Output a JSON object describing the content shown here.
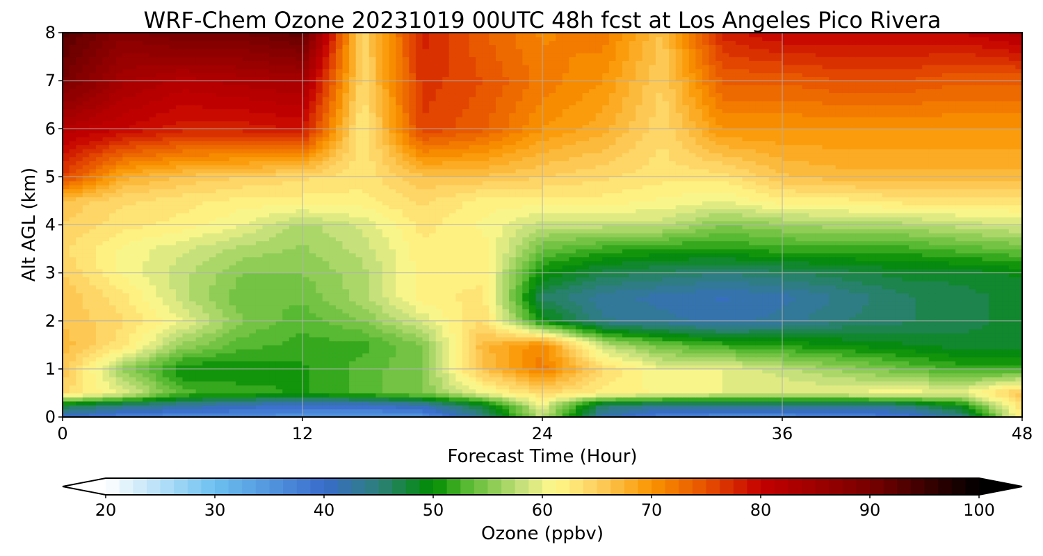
{
  "chart_data": {
    "type": "heatmap",
    "title": "WRF-Chem Ozone  20231019 00UTC 48h fcst at Los Angeles Pico Rivera",
    "xlabel": "Forecast Time (Hour)",
    "ylabel": "Alt AGL (km)",
    "xlim": [
      0,
      48
    ],
    "ylim": [
      0,
      8
    ],
    "x_ticks": [
      0,
      12,
      24,
      36,
      48
    ],
    "x_tick_labels": [
      "0",
      "12",
      "24",
      "36",
      "48"
    ],
    "y_ticks": [
      0,
      1,
      2,
      3,
      4,
      5,
      6,
      7,
      8
    ],
    "y_tick_labels": [
      "0",
      "1",
      "2",
      "3",
      "4",
      "5",
      "6",
      "7",
      "8"
    ],
    "grid": true,
    "x_hours": [
      0,
      3,
      6,
      9,
      12,
      15,
      18,
      21,
      24,
      27,
      30,
      33,
      36,
      39,
      42,
      45,
      48
    ],
    "y_km": [
      0,
      0.25,
      0.5,
      1,
      1.5,
      2,
      2.5,
      3,
      3.5,
      4,
      4.5,
      5,
      6,
      7,
      8
    ],
    "z_ppbv": [
      [
        40,
        37,
        36,
        36,
        35,
        34,
        35,
        44,
        58,
        42,
        37,
        36,
        36,
        37,
        38,
        44,
        62
      ],
      [
        48,
        45,
        43,
        41,
        40,
        40,
        42,
        48,
        60,
        46,
        44,
        44,
        44,
        44,
        45,
        50,
        64
      ],
      [
        64,
        60,
        53,
        52,
        51,
        53,
        55,
        60,
        64,
        62,
        61,
        60,
        60,
        60,
        61,
        60,
        66
      ],
      [
        66,
        56,
        50,
        50,
        51,
        53,
        55,
        66,
        72,
        64,
        60,
        60,
        58,
        56,
        54,
        52,
        52
      ],
      [
        67,
        63,
        56,
        53,
        52,
        52,
        55,
        67,
        71,
        58,
        54,
        52,
        51,
        50,
        49,
        48,
        48
      ],
      [
        66,
        64,
        60,
        55,
        53,
        55,
        59,
        64,
        50,
        44,
        43,
        42,
        43,
        45,
        46,
        47,
        48
      ],
      [
        66,
        63,
        58,
        54,
        54,
        57,
        62,
        63,
        46,
        43,
        42,
        41,
        42,
        44,
        46,
        47,
        48
      ],
      [
        65,
        61,
        58,
        55,
        55,
        57,
        62,
        62,
        50,
        47,
        46,
        45,
        46,
        47,
        48,
        48,
        49
      ],
      [
        64,
        61,
        59,
        57,
        56,
        58,
        62,
        62,
        54,
        52,
        51,
        51,
        52,
        52,
        52,
        53,
        54
      ],
      [
        65,
        63,
        62,
        60,
        57,
        59,
        63,
        61,
        58,
        58,
        58,
        55,
        56,
        57,
        57,
        58,
        59
      ],
      [
        66,
        64,
        63,
        62,
        62,
        62,
        64,
        62,
        62,
        62,
        61,
        60,
        62,
        62,
        63,
        63,
        63
      ],
      [
        76,
        68,
        66,
        65,
        64,
        63,
        66,
        66,
        65,
        64,
        63,
        63,
        66,
        67,
        67,
        67,
        67
      ],
      [
        82,
        80,
        78,
        78,
        79,
        62,
        76,
        74,
        70,
        68,
        64,
        70,
        70,
        70,
        70,
        70,
        70
      ],
      [
        90,
        84,
        82,
        83,
        84,
        64,
        77,
        75,
        72,
        70,
        65,
        74,
        74,
        75,
        75,
        74,
        74
      ],
      [
        93,
        88,
        90,
        90,
        92,
        64,
        78,
        74,
        71,
        72,
        66,
        78,
        80,
        80,
        80,
        80,
        82
      ]
    ],
    "colorbar": {
      "label": "Ozone  (ppbv)",
      "min": 20,
      "max": 100,
      "extend": "both",
      "ticks": [
        20,
        30,
        40,
        50,
        60,
        70,
        80,
        90,
        100
      ],
      "tick_labels": [
        "20",
        "30",
        "40",
        "50",
        "60",
        "70",
        "80",
        "90",
        "100"
      ],
      "stops": [
        {
          "v": 20,
          "c": "#ffffff"
        },
        {
          "v": 30,
          "c": "#6cc0f0"
        },
        {
          "v": 40,
          "c": "#3a6ccc"
        },
        {
          "v": 45,
          "c": "#2d7f7a"
        },
        {
          "v": 50,
          "c": "#008c00"
        },
        {
          "v": 53,
          "c": "#55b830"
        },
        {
          "v": 58,
          "c": "#c4e07a"
        },
        {
          "v": 61,
          "c": "#fff98c"
        },
        {
          "v": 65,
          "c": "#fdd060"
        },
        {
          "v": 70,
          "c": "#f99500"
        },
        {
          "v": 75,
          "c": "#e65000"
        },
        {
          "v": 80,
          "c": "#c40000"
        },
        {
          "v": 90,
          "c": "#780000"
        },
        {
          "v": 100,
          "c": "#000000"
        }
      ]
    }
  }
}
